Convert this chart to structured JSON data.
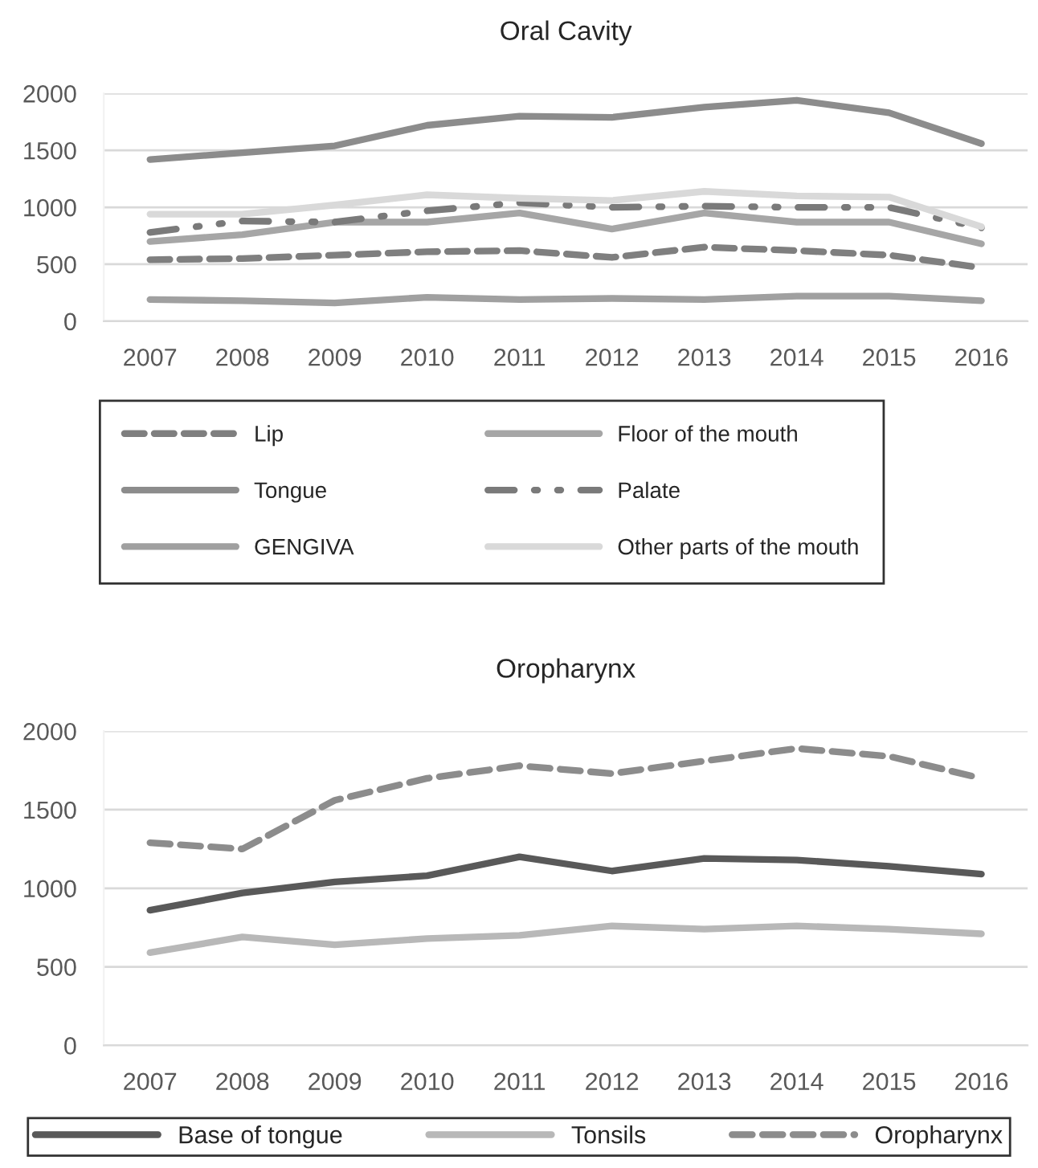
{
  "chart_data": [
    {
      "type": "line",
      "title": "Oral Cavity",
      "categories": [
        "2007",
        "2008",
        "2009",
        "2010",
        "2011",
        "2012",
        "2013",
        "2014",
        "2015",
        "2016"
      ],
      "ylim": [
        0,
        2000
      ],
      "yticks": [
        0,
        500,
        1000,
        1500,
        2000
      ],
      "grid": "y",
      "legend": "bottom",
      "series": [
        {
          "name": "Lip",
          "color": "#7f7f7f",
          "line_style": "dashed",
          "values": [
            540,
            550,
            580,
            610,
            620,
            560,
            650,
            620,
            580,
            470
          ]
        },
        {
          "name": "Tongue",
          "color": "#8c8c8c",
          "line_style": "solid",
          "values": [
            1420,
            1480,
            1540,
            1720,
            1800,
            1790,
            1880,
            1940,
            1830,
            1560
          ]
        },
        {
          "name": "GENGIVA",
          "color": "#a0a0a0",
          "line_style": "solid",
          "values": [
            190,
            180,
            160,
            210,
            190,
            200,
            190,
            220,
            220,
            180
          ]
        },
        {
          "name": "Floor of the mouth",
          "color": "#a6a6a6",
          "line_style": "solid",
          "values": [
            700,
            760,
            870,
            870,
            950,
            810,
            950,
            870,
            870,
            680
          ]
        },
        {
          "name": "Palate",
          "color": "#7a7a7a",
          "line_style": "dashdot",
          "values": [
            780,
            880,
            870,
            970,
            1040,
            1000,
            1010,
            1000,
            1000,
            820
          ]
        },
        {
          "name": "Other parts of the mouth",
          "color": "#d9d9d9",
          "line_style": "solid",
          "values": [
            940,
            940,
            1020,
            1110,
            1080,
            1060,
            1140,
            1100,
            1090,
            830
          ]
        }
      ]
    },
    {
      "type": "line",
      "title": "Oropharynx",
      "categories": [
        "2007",
        "2008",
        "2009",
        "2010",
        "2011",
        "2012",
        "2013",
        "2014",
        "2015",
        "2016"
      ],
      "ylim": [
        0,
        2000
      ],
      "yticks": [
        0,
        500,
        1000,
        1500,
        2000
      ],
      "grid": "y",
      "legend": "bottom",
      "series": [
        {
          "name": "Base of tongue",
          "color": "#595959",
          "line_style": "solid",
          "values": [
            860,
            970,
            1040,
            1080,
            1200,
            1110,
            1190,
            1180,
            1140,
            1090
          ]
        },
        {
          "name": "Tonsils",
          "color": "#b8b8b8",
          "line_style": "solid",
          "values": [
            590,
            690,
            640,
            680,
            700,
            760,
            740,
            760,
            740,
            710
          ]
        },
        {
          "name": "Oropharynx",
          "color": "#8c8c8c",
          "line_style": "dashed",
          "values": [
            1290,
            1250,
            1560,
            1700,
            1780,
            1730,
            1810,
            1890,
            1840,
            1700
          ]
        }
      ]
    }
  ]
}
